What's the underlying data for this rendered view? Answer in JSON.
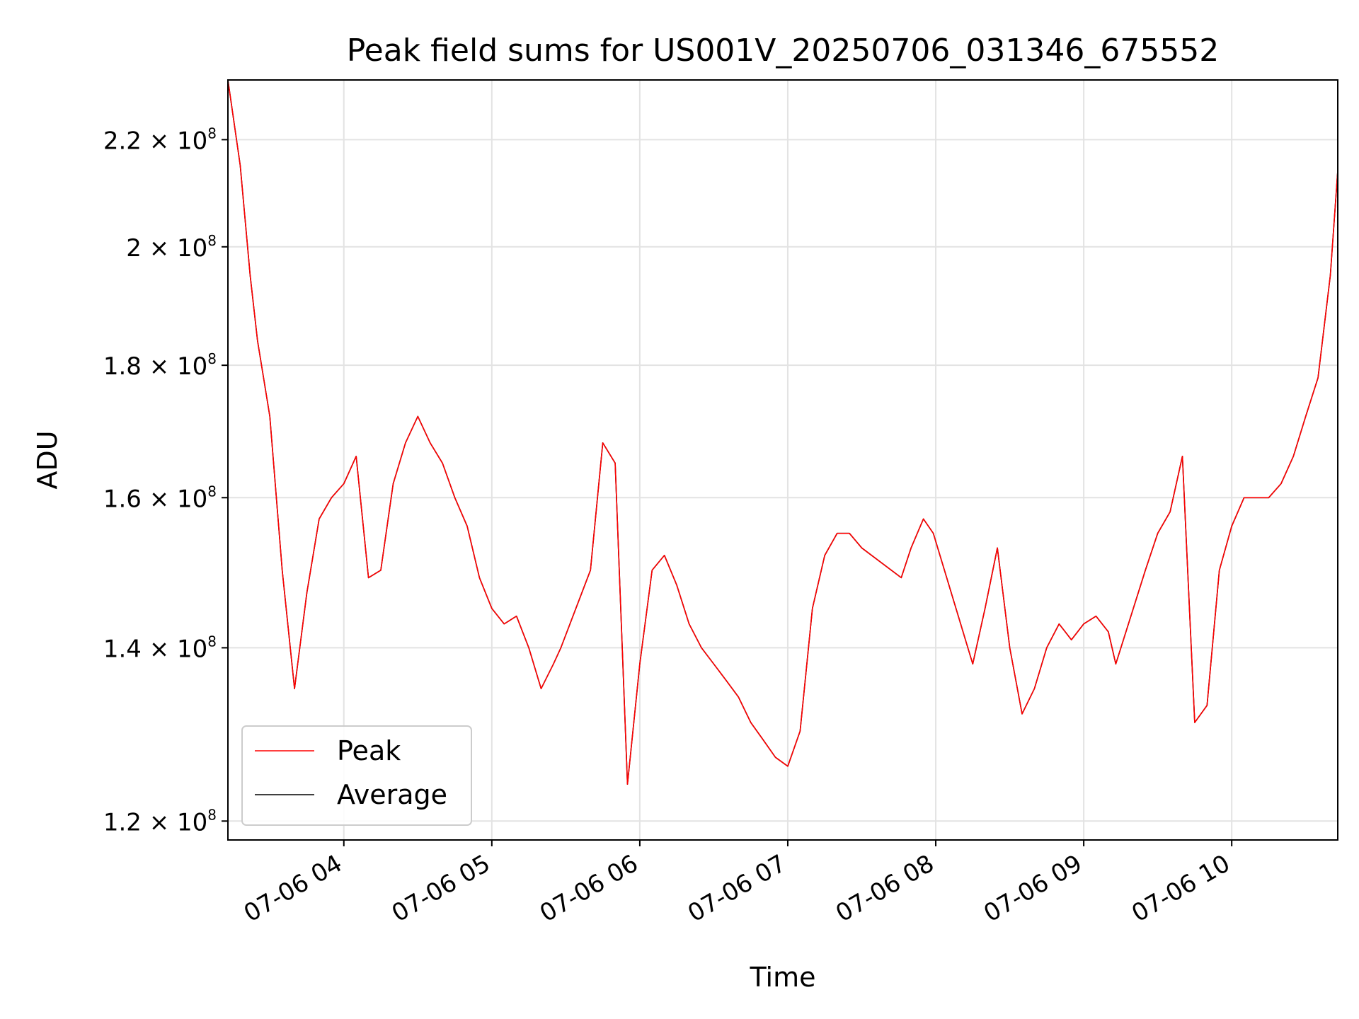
{
  "chart_data": {
    "type": "line",
    "title": "Peak field sums for US001V_20250706_031346_675552",
    "xlabel": "Time",
    "ylabel": "ADU",
    "yscale": "log",
    "ylim": [
      118000000,
      232000000
    ],
    "xlim": [
      "2025-07-06 03:13",
      "2025-07-06 10:43"
    ],
    "grid": true,
    "legend_position": "lower-left",
    "x_ticks": [
      {
        "label": "07-06 04",
        "value": "2025-07-06 04:00"
      },
      {
        "label": "07-06 05",
        "value": "2025-07-06 05:00"
      },
      {
        "label": "07-06 06",
        "value": "2025-07-06 06:00"
      },
      {
        "label": "07-06 07",
        "value": "2025-07-06 07:00"
      },
      {
        "label": "07-06 08",
        "value": "2025-07-06 08:00"
      },
      {
        "label": "07-06 09",
        "value": "2025-07-06 09:00"
      },
      {
        "label": "07-06 10",
        "value": "2025-07-06 10:00"
      }
    ],
    "y_ticks": [
      {
        "mantissa": "1.2",
        "exp": "8",
        "value": 120000000
      },
      {
        "mantissa": "1.4",
        "exp": "8",
        "value": 140000000
      },
      {
        "mantissa": "1.6",
        "exp": "8",
        "value": 160000000
      },
      {
        "mantissa": "1.8",
        "exp": "8",
        "value": 180000000
      },
      {
        "mantissa": "2",
        "exp": "8",
        "value": 200000000
      },
      {
        "mantissa": "2.2",
        "exp": "8",
        "value": 220000000
      }
    ],
    "series": [
      {
        "name": "Peak",
        "color": "#ff0000",
        "x": [
          "2025-07-06 03:13",
          "2025-07-06 03:18",
          "2025-07-06 03:22",
          "2025-07-06 03:25",
          "2025-07-06 03:30",
          "2025-07-06 03:35",
          "2025-07-06 03:40",
          "2025-07-06 03:45",
          "2025-07-06 03:50",
          "2025-07-06 03:55",
          "2025-07-06 04:00",
          "2025-07-06 04:05",
          "2025-07-06 04:10",
          "2025-07-06 04:15",
          "2025-07-06 04:20",
          "2025-07-06 04:25",
          "2025-07-06 04:30",
          "2025-07-06 04:35",
          "2025-07-06 04:40",
          "2025-07-06 04:45",
          "2025-07-06 04:50",
          "2025-07-06 04:55",
          "2025-07-06 05:00",
          "2025-07-06 05:05",
          "2025-07-06 05:10",
          "2025-07-06 05:15",
          "2025-07-06 05:20",
          "2025-07-06 05:25",
          "2025-07-06 05:28",
          "2025-07-06 05:40",
          "2025-07-06 05:45",
          "2025-07-06 05:50",
          "2025-07-06 05:55",
          "2025-07-06 06:00",
          "2025-07-06 06:05",
          "2025-07-06 06:10",
          "2025-07-06 06:15",
          "2025-07-06 06:20",
          "2025-07-06 06:25",
          "2025-07-06 06:30",
          "2025-07-06 06:35",
          "2025-07-06 06:40",
          "2025-07-06 06:45",
          "2025-07-06 06:50",
          "2025-07-06 06:55",
          "2025-07-06 07:00",
          "2025-07-06 07:05",
          "2025-07-06 07:10",
          "2025-07-06 07:15",
          "2025-07-06 07:20",
          "2025-07-06 07:25",
          "2025-07-06 07:30",
          "2025-07-06 07:46",
          "2025-07-06 07:50",
          "2025-07-06 07:55",
          "2025-07-06 07:59",
          "2025-07-06 08:15",
          "2025-07-06 08:20",
          "2025-07-06 08:25",
          "2025-07-06 08:30",
          "2025-07-06 08:35",
          "2025-07-06 08:40",
          "2025-07-06 08:45",
          "2025-07-06 08:50",
          "2025-07-06 08:55",
          "2025-07-06 09:00",
          "2025-07-06 09:05",
          "2025-07-06 09:10",
          "2025-07-06 09:13",
          "2025-07-06 09:25",
          "2025-07-06 09:30",
          "2025-07-06 09:35",
          "2025-07-06 09:40",
          "2025-07-06 09:45",
          "2025-07-06 09:50",
          "2025-07-06 09:55",
          "2025-07-06 10:00",
          "2025-07-06 10:05",
          "2025-07-06 10:10",
          "2025-07-06 10:15",
          "2025-07-06 10:20",
          "2025-07-06 10:25",
          "2025-07-06 10:30",
          "2025-07-06 10:35",
          "2025-07-06 10:40",
          "2025-07-06 10:43"
        ],
        "values": [
          232000000,
          215000000,
          195000000,
          184000000,
          172000000,
          150000000,
          135000000,
          147000000,
          157000000,
          160000000,
          162000000,
          166000000,
          149000000,
          150000000,
          162000000,
          168000000,
          172000000,
          168000000,
          165000000,
          160000000,
          156000000,
          149000000,
          145000000,
          143000000,
          144000000,
          140000000,
          135000000,
          138000000,
          140000000,
          150000000,
          168000000,
          165000000,
          124000000,
          138000000,
          150000000,
          152000000,
          148000000,
          143000000,
          140000000,
          138000000,
          136000000,
          134000000,
          131000000,
          129000000,
          127000000,
          126000000,
          130000000,
          145000000,
          152000000,
          155000000,
          155000000,
          153000000,
          149000000,
          153000000,
          157000000,
          155000000,
          138000000,
          145000000,
          153000000,
          140000000,
          132000000,
          135000000,
          140000000,
          143000000,
          141000000,
          143000000,
          144000000,
          142000000,
          138000000,
          150000000,
          155000000,
          158000000,
          166000000,
          131000000,
          133000000,
          150000000,
          156000000,
          160000000,
          160000000,
          160000000,
          162000000,
          166000000,
          172000000,
          178000000,
          195000000,
          214000000
        ]
      },
      {
        "name": "Average",
        "color": "#000000",
        "x": [
          "2025-07-06 03:13",
          "2025-07-06 03:18",
          "2025-07-06 03:22",
          "2025-07-06 03:25",
          "2025-07-06 03:30",
          "2025-07-06 03:35",
          "2025-07-06 03:40",
          "2025-07-06 03:45",
          "2025-07-06 03:50",
          "2025-07-06 03:55",
          "2025-07-06 04:00",
          "2025-07-06 04:05",
          "2025-07-06 04:10",
          "2025-07-06 04:15",
          "2025-07-06 04:20",
          "2025-07-06 04:25",
          "2025-07-06 04:30",
          "2025-07-06 04:35",
          "2025-07-06 04:40",
          "2025-07-06 04:45",
          "2025-07-06 04:50",
          "2025-07-06 04:55",
          "2025-07-06 05:00",
          "2025-07-06 05:05",
          "2025-07-06 05:10",
          "2025-07-06 05:15",
          "2025-07-06 05:20",
          "2025-07-06 05:25",
          "2025-07-06 05:28",
          "2025-07-06 05:40",
          "2025-07-06 05:45",
          "2025-07-06 05:50",
          "2025-07-06 05:55",
          "2025-07-06 06:00",
          "2025-07-06 06:05",
          "2025-07-06 06:10",
          "2025-07-06 06:15",
          "2025-07-06 06:20",
          "2025-07-06 06:25",
          "2025-07-06 06:30",
          "2025-07-06 06:35",
          "2025-07-06 06:40",
          "2025-07-06 06:45",
          "2025-07-06 06:50",
          "2025-07-06 06:55",
          "2025-07-06 07:00",
          "2025-07-06 07:05",
          "2025-07-06 07:10",
          "2025-07-06 07:15",
          "2025-07-06 07:20",
          "2025-07-06 07:25",
          "2025-07-06 07:30",
          "2025-07-06 07:46",
          "2025-07-06 07:50",
          "2025-07-06 07:55",
          "2025-07-06 07:59",
          "2025-07-06 08:15",
          "2025-07-06 08:20",
          "2025-07-06 08:25",
          "2025-07-06 08:30",
          "2025-07-06 08:35",
          "2025-07-06 08:40",
          "2025-07-06 08:45",
          "2025-07-06 08:50",
          "2025-07-06 08:55",
          "2025-07-06 09:00",
          "2025-07-06 09:05",
          "2025-07-06 09:10",
          "2025-07-06 09:13",
          "2025-07-06 09:25",
          "2025-07-06 09:30",
          "2025-07-06 09:35",
          "2025-07-06 09:40",
          "2025-07-06 09:45",
          "2025-07-06 09:50",
          "2025-07-06 09:55",
          "2025-07-06 10:00",
          "2025-07-06 10:05",
          "2025-07-06 10:10",
          "2025-07-06 10:15",
          "2025-07-06 10:20",
          "2025-07-06 10:25",
          "2025-07-06 10:30",
          "2025-07-06 10:35",
          "2025-07-06 10:40",
          "2025-07-06 10:43"
        ],
        "values": [
          232000000,
          215000000,
          195000000,
          184000000,
          172000000,
          150000000,
          135000000,
          147000000,
          157000000,
          160000000,
          162000000,
          166000000,
          149000000,
          150000000,
          162000000,
          168000000,
          172000000,
          168000000,
          165000000,
          160000000,
          156000000,
          149000000,
          145000000,
          143000000,
          144000000,
          140000000,
          135000000,
          138000000,
          140000000,
          150000000,
          168000000,
          165000000,
          124000000,
          138000000,
          150000000,
          152000000,
          148000000,
          143000000,
          140000000,
          138000000,
          136000000,
          134000000,
          131000000,
          129000000,
          127000000,
          126000000,
          130000000,
          145000000,
          152000000,
          155000000,
          155000000,
          153000000,
          149000000,
          153000000,
          157000000,
          155000000,
          138000000,
          145000000,
          153000000,
          140000000,
          132000000,
          135000000,
          140000000,
          143000000,
          141000000,
          143000000,
          144000000,
          142000000,
          138000000,
          150000000,
          155000000,
          158000000,
          166000000,
          131000000,
          133000000,
          150000000,
          156000000,
          160000000,
          160000000,
          160000000,
          162000000,
          166000000,
          172000000,
          178000000,
          195000000,
          214000000
        ]
      }
    ]
  }
}
